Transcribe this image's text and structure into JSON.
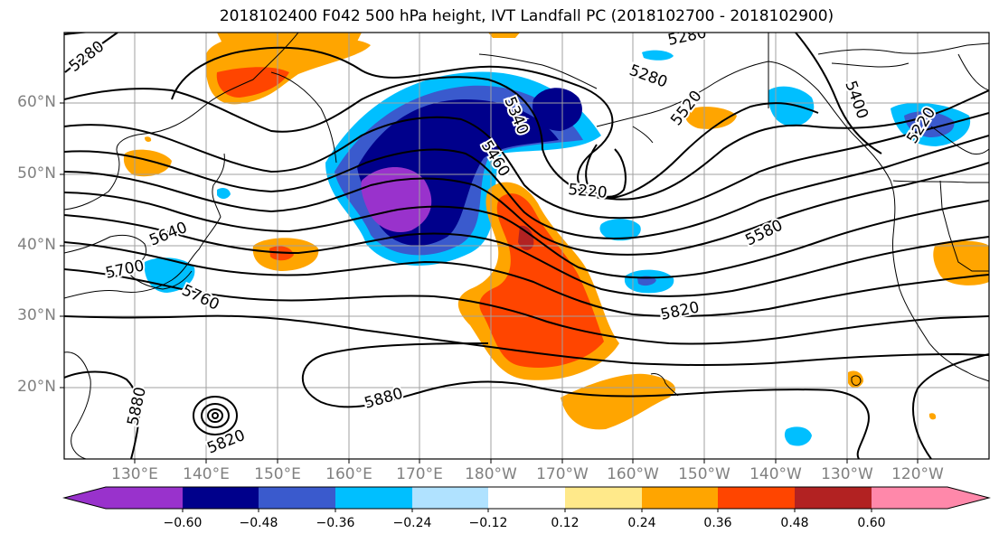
{
  "title": "2018102400 F042 500 hPa height, IVT Landfall PC (2018102700 - 2018102900)",
  "lat_labels": [
    "60°N",
    "50°N",
    "40°N",
    "30°N",
    "20°N"
  ],
  "lon_labels": [
    "130°E",
    "140°E",
    "150°E",
    "160°E",
    "170°E",
    "180°W",
    "170°W",
    "160°W",
    "150°W",
    "140°W",
    "130°W",
    "120°W"
  ],
  "contour_labels": [
    "5280",
    "5280",
    "5280",
    "5340",
    "5460",
    "5220",
    "5220",
    "5400",
    "5520",
    "5580",
    "5640",
    "5700",
    "5760",
    "5820",
    "5820",
    "5880",
    "5880"
  ],
  "colorbar": {
    "colors": [
      "#9932cc",
      "#00008b",
      "#3a5acd",
      "#00bfff",
      "#b0e2ff",
      "#ffffff",
      "#ffe98a",
      "#ffa500",
      "#ff4500",
      "#b22222",
      "#ff88aa"
    ],
    "labels": [
      "−0.60",
      "−0.48",
      "−0.36",
      "−0.24",
      "−0.12",
      "0.12",
      "0.24",
      "0.36",
      "0.48",
      "0.60"
    ]
  }
}
